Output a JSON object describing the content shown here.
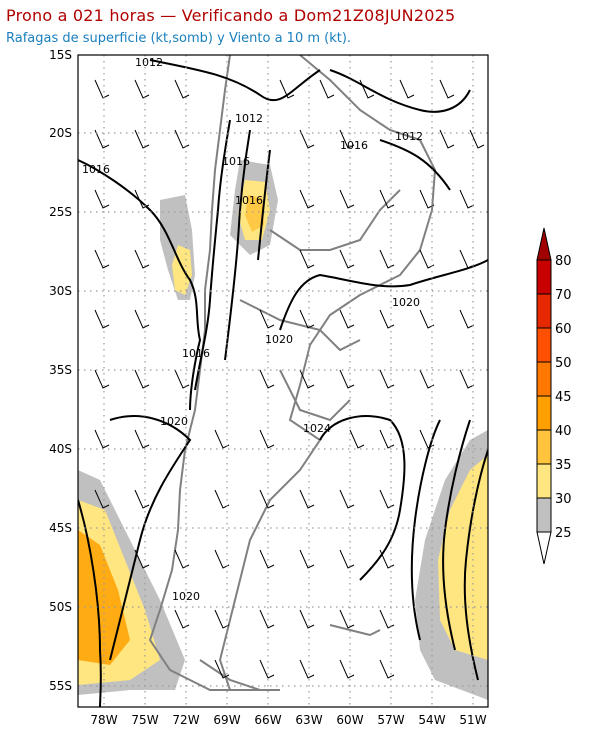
{
  "title": "Prono a 021 horas — Verificando a Dom21Z08JUN2025",
  "subtitle": "Rafagas de superficie (kt,somb) y Viento a 10 m (kt).",
  "map": {
    "lat_labels": [
      "15S",
      "20S",
      "25S",
      "30S",
      "35S",
      "40S",
      "45S",
      "50S",
      "55S"
    ],
    "lon_labels": [
      "78W",
      "75W",
      "72W",
      "69W",
      "66W",
      "63W",
      "60W",
      "57W",
      "54W",
      "51W"
    ],
    "isobar_labels": [
      "1012",
      "1012",
      "1012",
      "1016",
      "1016",
      "1016",
      "1016",
      "1016",
      "1020",
      "1020",
      "1020",
      "1020",
      "1024"
    ],
    "gridlines": "dotted"
  },
  "colorbar": {
    "levels": [
      "25",
      "30",
      "35",
      "40",
      "45",
      "50",
      "60",
      "70",
      "80"
    ],
    "colors": [
      "#c0c0c0",
      "#ffe680",
      "#ffc33c",
      "#ffa000",
      "#ff7800",
      "#ff5000",
      "#e62800",
      "#c80000",
      "#a00000"
    ]
  }
}
